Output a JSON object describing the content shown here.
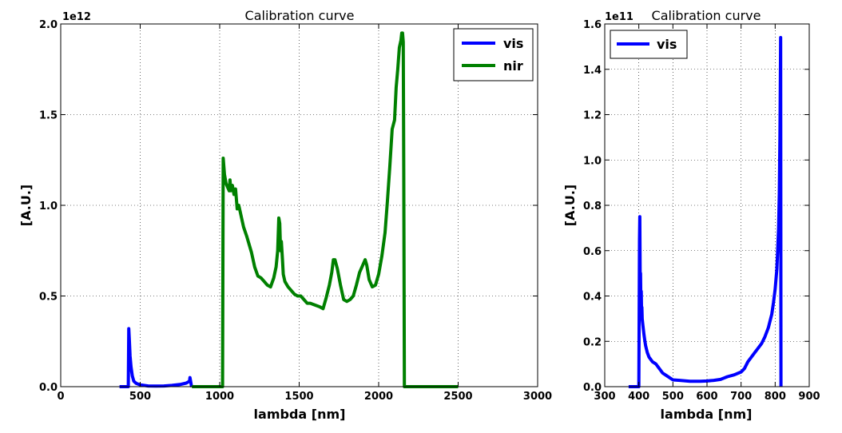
{
  "chart_data": [
    {
      "type": "line",
      "title": "Calibration curve",
      "xlabel": "lambda [nm]",
      "ylabel": "[A.U.]",
      "y_offset_label": "1e12",
      "xlim": [
        0,
        3000
      ],
      "ylim": [
        0,
        2.0
      ],
      "x_ticks": [
        0,
        500,
        1000,
        1500,
        2000,
        2500,
        3000
      ],
      "x_tick_labels": [
        "0",
        "500",
        "1000",
        "1500",
        "2000",
        "2500",
        "3000"
      ],
      "y_ticks": [
        0,
        0.5,
        1.0,
        1.5,
        2.0
      ],
      "y_tick_labels": [
        "0.0",
        "0.5",
        "1.0",
        "1.5",
        "2.0"
      ],
      "grid": true,
      "legend": "top-right",
      "series": [
        {
          "name": "vis",
          "color": "#0000ff",
          "x": [
            370,
            425,
            428,
            432,
            436,
            442,
            450,
            460,
            475,
            500,
            550,
            600,
            650,
            700,
            750,
            790,
            810,
            813,
            818,
            822,
            825
          ],
          "y": [
            0,
            0,
            0.32,
            0.25,
            0.17,
            0.11,
            0.06,
            0.03,
            0.018,
            0.01,
            0.004,
            0.003,
            0.004,
            0.007,
            0.012,
            0.02,
            0.03,
            0.05,
            0.025,
            0.005,
            0
          ]
        },
        {
          "name": "nir",
          "color": "#008000",
          "x": [
            825,
            1018,
            1022,
            1030,
            1040,
            1050,
            1060,
            1065,
            1070,
            1080,
            1090,
            1100,
            1110,
            1120,
            1130,
            1140,
            1150,
            1170,
            1200,
            1220,
            1240,
            1260,
            1280,
            1300,
            1320,
            1340,
            1355,
            1365,
            1372,
            1378,
            1383,
            1388,
            1395,
            1400,
            1410,
            1430,
            1450,
            1470,
            1490,
            1510,
            1530,
            1550,
            1570,
            1600,
            1630,
            1650,
            1670,
            1690,
            1705,
            1715,
            1725,
            1740,
            1760,
            1780,
            1800,
            1820,
            1840,
            1860,
            1880,
            1900,
            1915,
            1925,
            1940,
            1960,
            1980,
            2000,
            2020,
            2040,
            2055,
            2070,
            2085,
            2100,
            2110,
            2120,
            2130,
            2140,
            2145,
            2150,
            2155,
            2158,
            2162,
            2200,
            2300,
            2400,
            2500
          ],
          "y": [
            0,
            0,
            1.26,
            1.17,
            1.12,
            1.1,
            1.08,
            1.14,
            1.08,
            1.11,
            1.06,
            1.09,
            0.98,
            1.0,
            0.96,
            0.92,
            0.88,
            0.83,
            0.74,
            0.66,
            0.61,
            0.6,
            0.58,
            0.56,
            0.55,
            0.6,
            0.66,
            0.75,
            0.93,
            0.9,
            0.75,
            0.8,
            0.7,
            0.62,
            0.58,
            0.55,
            0.53,
            0.51,
            0.5,
            0.5,
            0.48,
            0.46,
            0.46,
            0.45,
            0.44,
            0.43,
            0.49,
            0.56,
            0.63,
            0.7,
            0.7,
            0.65,
            0.56,
            0.48,
            0.47,
            0.48,
            0.5,
            0.56,
            0.63,
            0.67,
            0.7,
            0.67,
            0.59,
            0.55,
            0.56,
            0.62,
            0.72,
            0.85,
            1.02,
            1.21,
            1.42,
            1.47,
            1.65,
            1.75,
            1.87,
            1.91,
            1.95,
            1.95,
            1.9,
            1.2,
            0,
            0,
            0,
            0,
            0
          ]
        }
      ]
    },
    {
      "type": "line",
      "title": "Calibration curve",
      "xlabel": "lambda [nm]",
      "ylabel": "[A.U.]",
      "y_offset_label": "1e11",
      "xlim": [
        300,
        900
      ],
      "ylim": [
        0,
        1.6
      ],
      "x_ticks": [
        300,
        400,
        500,
        600,
        700,
        800,
        900
      ],
      "x_tick_labels": [
        "300",
        "400",
        "500",
        "600",
        "700",
        "800",
        "900"
      ],
      "y_ticks": [
        0,
        0.2,
        0.4,
        0.6,
        0.8,
        1.0,
        1.2,
        1.4,
        1.6
      ],
      "y_tick_labels": [
        "0.0",
        "0.2",
        "0.4",
        "0.6",
        "0.8",
        "1.0",
        "1.2",
        "1.4",
        "1.6"
      ],
      "grid": true,
      "legend": "top-left",
      "series": [
        {
          "name": "vis",
          "color": "#0000ff",
          "x": [
            370,
            400,
            402,
            403,
            404,
            405,
            406,
            407,
            408,
            409,
            410,
            412,
            415,
            418,
            420,
            425,
            430,
            440,
            450,
            460,
            470,
            480,
            500,
            520,
            550,
            580,
            600,
            620,
            640,
            650,
            660,
            680,
            700,
            710,
            720,
            730,
            740,
            750,
            760,
            770,
            780,
            790,
            795,
            800,
            805,
            808,
            810,
            812,
            814,
            815,
            816,
            817
          ],
          "y": [
            0,
            0,
            0.65,
            0.75,
            0.45,
            0.5,
            0.38,
            0.42,
            0.33,
            0.35,
            0.3,
            0.27,
            0.23,
            0.2,
            0.18,
            0.15,
            0.13,
            0.11,
            0.1,
            0.08,
            0.06,
            0.05,
            0.03,
            0.028,
            0.024,
            0.024,
            0.025,
            0.028,
            0.032,
            0.038,
            0.044,
            0.052,
            0.065,
            0.08,
            0.11,
            0.13,
            0.15,
            0.17,
            0.19,
            0.22,
            0.26,
            0.32,
            0.37,
            0.43,
            0.52,
            0.62,
            0.7,
            0.85,
            1.1,
            1.3,
            1.54,
            0
          ]
        }
      ]
    }
  ]
}
